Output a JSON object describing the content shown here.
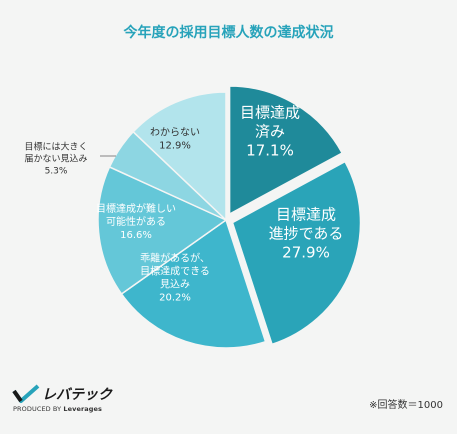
{
  "chart_data": {
    "type": "pie",
    "title": "今年度の採用目標人数の達成状況",
    "slices": [
      {
        "label": [
          "目標達成",
          "済み"
        ],
        "value": 17.1,
        "value_label": "17.1%",
        "color": "#1f8a9a",
        "exploded": true
      },
      {
        "label": [
          "目標達成",
          "進捗である"
        ],
        "value": 27.9,
        "value_label": "27.9%",
        "color": "#2aa4b8",
        "exploded": true
      },
      {
        "label": [
          "乖離があるが、",
          "目標達成できる",
          "見込み"
        ],
        "value": 20.2,
        "value_label": "20.2%",
        "color": "#3eb6cc",
        "exploded": false
      },
      {
        "label": [
          "目標達成が難しい",
          "可能性がある"
        ],
        "value": 16.6,
        "value_label": "16.6%",
        "color": "#64c7d8",
        "exploded": false
      },
      {
        "label": [
          "目標には大きく",
          "届かない見込み"
        ],
        "value": 5.3,
        "value_label": "5.3%",
        "color": "#8dd6e2",
        "exploded": false
      },
      {
        "label": [
          "わからない"
        ],
        "value": 12.9,
        "value_label": "12.9%",
        "color": "#b2e4ec",
        "exploded": false
      }
    ],
    "legend": "none"
  },
  "brand": {
    "name": "レバテック",
    "sub_prefix": "PRODUCED BY",
    "sub_name": "Leverages",
    "color": "#27a3ba"
  },
  "note": "※回答数＝1000"
}
